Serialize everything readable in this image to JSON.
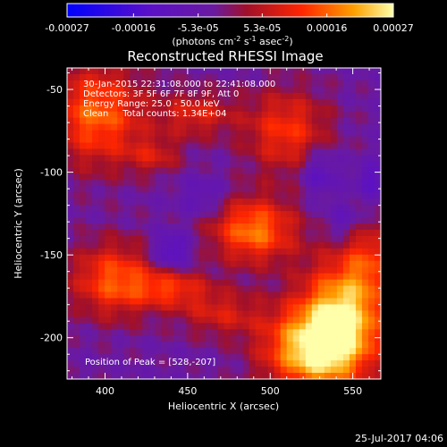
{
  "chart_data": {
    "type": "heatmap",
    "title": "Reconstructed RHESSI Image",
    "xlabel": "Heliocentric X (arcsec)",
    "ylabel": "Heliocentric Y (arcsec)",
    "xlim": [
      377,
      567
    ],
    "ylim": [
      -225,
      -37
    ],
    "xticks": [
      400,
      450,
      500,
      550
    ],
    "yticks": [
      -50,
      -100,
      -150,
      -200
    ],
    "colorbar": {
      "min": -0.00027,
      "max": 0.00027,
      "ticks": [
        "-0.00027",
        "-0.00016",
        "-5.3e-05",
        "5.3e-05",
        "0.00016",
        "0.00027"
      ],
      "tick_values": [
        -0.00027,
        -0.00016,
        -5.3e-05,
        5.3e-05,
        0.00016,
        0.00027
      ],
      "units_parts": [
        "(photons cm",
        "-2",
        " s",
        "-1",
        " asec",
        "-2",
        ")"
      ]
    },
    "annotations": [
      "30-Jan-2015 22:31:08.000 to 22:41:08.000",
      "Detectors: 3F 5F 6F 7F 8F 9F, Att 0",
      "Energy Range: 25.0 - 50.0 keV",
      "Clean     Total counts: 1.34E+04"
    ],
    "peak_label": "Position of Peak = [528,-207]",
    "peak": [
      528,
      -207
    ],
    "sources": [
      {
        "x": 528,
        "y": -207,
        "amp": 1.0,
        "sx": 22,
        "sy": 18
      },
      {
        "x": 545,
        "y": -180,
        "amp": 0.75,
        "sx": 18,
        "sy": 22
      },
      {
        "x": 490,
        "y": -135,
        "amp": 0.7,
        "sx": 18,
        "sy": 14
      },
      {
        "x": 395,
        "y": -65,
        "amp": 0.65,
        "sx": 20,
        "sy": 22
      },
      {
        "x": 405,
        "y": -165,
        "amp": 0.6,
        "sx": 18,
        "sy": 16
      },
      {
        "x": 510,
        "y": -75,
        "amp": 0.5,
        "sx": 18,
        "sy": 18
      },
      {
        "x": 455,
        "y": -65,
        "amp": 0.4,
        "sx": 16,
        "sy": 10
      },
      {
        "x": 440,
        "y": -170,
        "amp": 0.45,
        "sx": 16,
        "sy": 8
      },
      {
        "x": 560,
        "y": -150,
        "amp": 0.35,
        "sx": 10,
        "sy": 16
      },
      {
        "x": 430,
        "y": -90,
        "amp": 0.3,
        "sx": 12,
        "sy": 8
      },
      {
        "x": 470,
        "y": -185,
        "amp": 0.35,
        "sx": 18,
        "sy": 10
      }
    ],
    "negative_spots": [
      {
        "x": 440,
        "y": -148,
        "amp": 0.6,
        "sx": 8,
        "sy": 8
      },
      {
        "x": 530,
        "y": -100,
        "amp": 0.5,
        "sx": 8,
        "sy": 10
      },
      {
        "x": 560,
        "y": -105,
        "amp": 0.45,
        "sx": 6,
        "sy": 8
      },
      {
        "x": 460,
        "y": -115,
        "amp": 0.35,
        "sx": 10,
        "sy": 8
      },
      {
        "x": 545,
        "y": -130,
        "amp": 0.35,
        "sx": 8,
        "sy": 8
      }
    ]
  },
  "footer": {
    "timestamp": "25-Jul-2017 04:06"
  }
}
